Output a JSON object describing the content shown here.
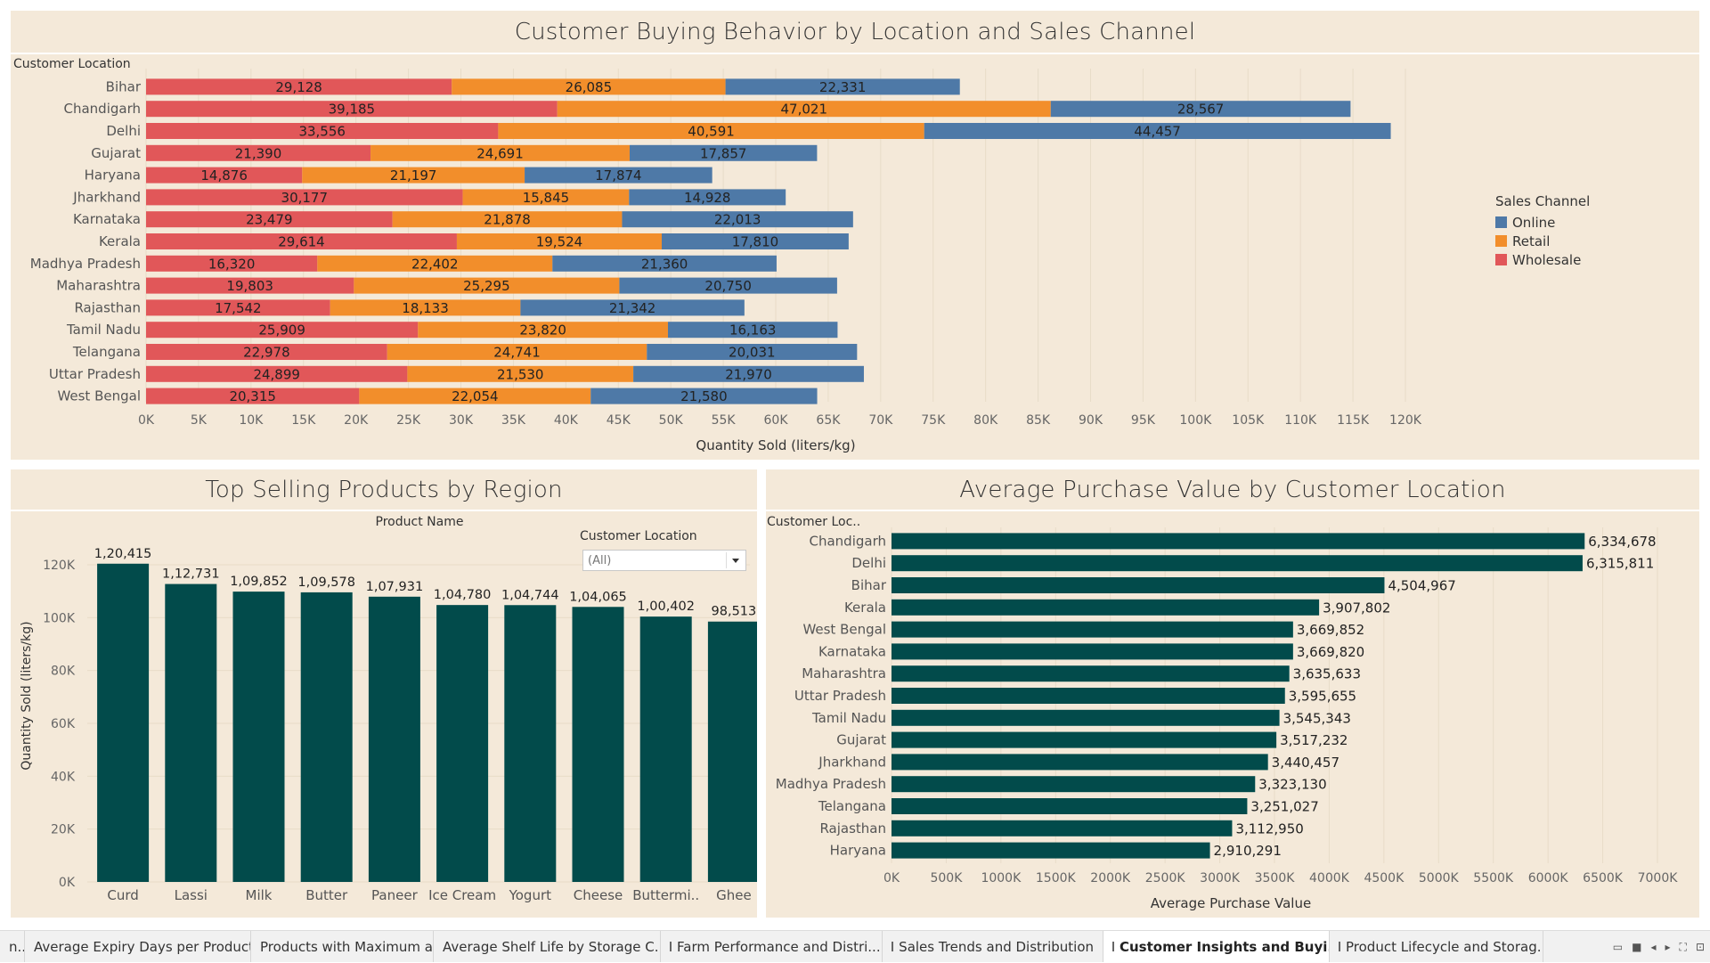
{
  "dashboard": {
    "top_title": "Customer Buying Behavior by Location and Sales Channel",
    "left_title": "Top Selling Products by Region",
    "right_title": "Average Purchase Value by Customer Location"
  },
  "colors": {
    "wholesale": "#e15759",
    "retail": "#f28e2b",
    "online": "#4e79a7",
    "teal": "#024b4b",
    "panel_bg": "#f4e9d9"
  },
  "legend": {
    "title": "Sales Channel",
    "items": [
      {
        "label": "Online",
        "color": "#4e79a7"
      },
      {
        "label": "Retail",
        "color": "#f28e2b"
      },
      {
        "label": "Wholesale",
        "color": "#e15759"
      }
    ]
  },
  "filter": {
    "label": "Customer Location",
    "value": "(All)"
  },
  "chart_data": [
    {
      "type": "bar",
      "orientation": "horizontal-stacked",
      "title": "Customer Buying Behavior by Location and Sales Channel",
      "row_header": "Customer Location",
      "xlabel": "Quantity Sold (liters/kg)",
      "xlim": [
        0,
        120000
      ],
      "x_ticks": [
        "0K",
        "5K",
        "10K",
        "15K",
        "20K",
        "25K",
        "30K",
        "35K",
        "40K",
        "45K",
        "50K",
        "55K",
        "60K",
        "65K",
        "70K",
        "75K",
        "80K",
        "85K",
        "90K",
        "95K",
        "100K",
        "105K",
        "110K",
        "115K",
        "120K"
      ],
      "categories": [
        "Bihar",
        "Chandigarh",
        "Delhi",
        "Gujarat",
        "Haryana",
        "Jharkhand",
        "Karnataka",
        "Kerala",
        "Madhya Pradesh",
        "Maharashtra",
        "Rajasthan",
        "Tamil Nadu",
        "Telangana",
        "Uttar Pradesh",
        "West Bengal"
      ],
      "series": [
        {
          "name": "Wholesale",
          "values": [
            29128,
            39185,
            33556,
            21390,
            14876,
            30177,
            23479,
            29614,
            16320,
            19803,
            17542,
            25909,
            22978,
            24899,
            20315
          ],
          "labels": [
            "29,128",
            "39,185",
            "33,556",
            "21,390",
            "14,876",
            "30,177",
            "23,479",
            "29,614",
            "16,320",
            "19,803",
            "17,542",
            "25,909",
            "22,978",
            "24,899",
            "20,315"
          ]
        },
        {
          "name": "Retail",
          "values": [
            26085,
            47021,
            40591,
            24691,
            21197,
            15845,
            21878,
            19524,
            22402,
            25295,
            18133,
            23820,
            24741,
            21530,
            22054
          ],
          "labels": [
            "26,085",
            "47,021",
            "40,591",
            "24,691",
            "21,197",
            "15,845",
            "21,878",
            "19,524",
            "22,402",
            "25,295",
            "18,133",
            "23,820",
            "24,741",
            "21,530",
            "22,054"
          ]
        },
        {
          "name": "Online",
          "values": [
            22331,
            28567,
            44457,
            17857,
            17874,
            14928,
            22013,
            17810,
            21360,
            20750,
            21342,
            16163,
            20031,
            21970,
            21580
          ],
          "labels": [
            "22,331",
            "28,567",
            "44,457",
            "17,857",
            "17,874",
            "14,928",
            "22,013",
            "17,810",
            "21,360",
            "20,750",
            "21,342",
            "16,163",
            "20,031",
            "21,970",
            "21,580"
          ]
        }
      ]
    },
    {
      "type": "bar",
      "orientation": "vertical",
      "title": "Top Selling Products by Region",
      "header": "Product Name",
      "ylabel": "Quantity Sold (liters/kg)",
      "ylim": [
        0,
        125000
      ],
      "y_ticks": [
        {
          "value": 0,
          "label": "0K"
        },
        {
          "value": 20000,
          "label": "20K"
        },
        {
          "value": 40000,
          "label": "40K"
        },
        {
          "value": 60000,
          "label": "60K"
        },
        {
          "value": 80000,
          "label": "80K"
        },
        {
          "value": 100000,
          "label": "100K"
        },
        {
          "value": 120000,
          "label": "120K"
        }
      ],
      "categories": [
        "Curd",
        "Lassi",
        "Milk",
        "Butter",
        "Paneer",
        "Ice Cream",
        "Yogurt",
        "Cheese",
        "Buttermi..",
        "Ghee"
      ],
      "values": [
        120415,
        112731,
        109852,
        109578,
        107931,
        104780,
        104744,
        104065,
        100402,
        98513
      ],
      "labels": [
        "1,20,415",
        "1,12,731",
        "1,09,852",
        "1,09,578",
        "1,07,931",
        "1,04,780",
        "1,04,744",
        "1,04,065",
        "1,00,402",
        "98,513"
      ]
    },
    {
      "type": "bar",
      "orientation": "horizontal",
      "title": "Average Purchase Value by Customer Location",
      "row_header": "Customer Loc..",
      "xlabel": "Average Purchase Value",
      "xlim": [
        0,
        7000000
      ],
      "x_ticks": [
        "0K",
        "500K",
        "1000K",
        "1500K",
        "2000K",
        "2500K",
        "3000K",
        "3500K",
        "4000K",
        "4500K",
        "5000K",
        "5500K",
        "6000K",
        "6500K",
        "7000K"
      ],
      "categories": [
        "Chandigarh",
        "Delhi",
        "Bihar",
        "Kerala",
        "West Bengal",
        "Karnataka",
        "Maharashtra",
        "Uttar Pradesh",
        "Tamil Nadu",
        "Gujarat",
        "Jharkhand",
        "Madhya Pradesh",
        "Telangana",
        "Rajasthan",
        "Haryana"
      ],
      "values": [
        6334678,
        6315811,
        4504967,
        3907802,
        3669852,
        3669820,
        3635633,
        3595655,
        3545343,
        3517232,
        3440457,
        3323130,
        3251027,
        3112950,
        2910291
      ],
      "labels": [
        "6,334,678",
        "6,315,811",
        "4,504,967",
        "3,907,802",
        "3,669,852",
        "3,669,820",
        "3,635,633",
        "3,595,655",
        "3,545,343",
        "3,517,232",
        "3,440,457",
        "3,323,130",
        "3,251,027",
        "3,112,950",
        "2,910,291"
      ]
    }
  ],
  "tabs": [
    {
      "label": "n..",
      "active": false,
      "icon": false
    },
    {
      "label": "Average Expiry Days per Product",
      "active": false,
      "icon": false
    },
    {
      "label": "Products with Maximum and Mi...",
      "active": false,
      "icon": false
    },
    {
      "label": "Average Shelf Life by Storage C...",
      "active": false,
      "icon": false
    },
    {
      "label": "Farm Performance and Distri...",
      "active": false,
      "icon": true
    },
    {
      "label": "Sales Trends and Distribution",
      "active": false,
      "icon": true
    },
    {
      "label": "Customer Insights and Buyi...",
      "active": true,
      "icon": true
    },
    {
      "label": "Product Lifecycle and Storag...",
      "active": false,
      "icon": true
    }
  ]
}
